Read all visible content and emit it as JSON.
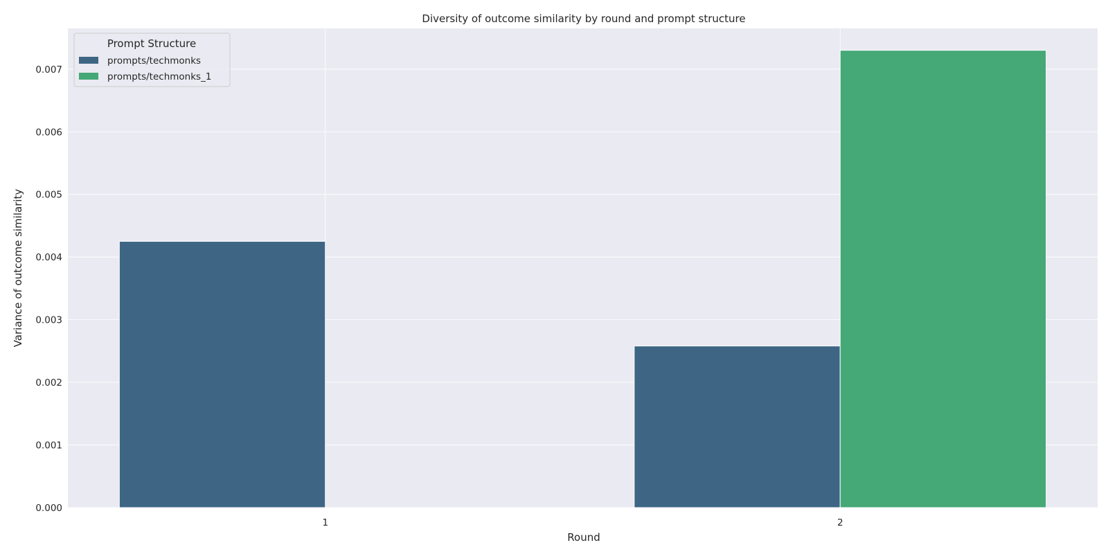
{
  "chart_data": {
    "type": "bar",
    "title": "Diversity of outcome similarity by round and prompt structure",
    "xlabel": "Round",
    "ylabel": "Variance of outcome similarity",
    "categories": [
      "1",
      "2"
    ],
    "series": [
      {
        "name": "prompts/techmonks",
        "color": "#3e6684",
        "values": [
          0.00425,
          0.00258
        ]
      },
      {
        "name": "prompts/techmonks_1",
        "color": "#45a877",
        "values": [
          null,
          0.0073
        ]
      }
    ],
    "ylim": [
      0,
      0.00765
    ],
    "yticks": [
      "0.000",
      "0.001",
      "0.002",
      "0.003",
      "0.004",
      "0.005",
      "0.006",
      "0.007"
    ],
    "legend": {
      "title": "Prompt Structure",
      "position": "top-left"
    },
    "grid": true,
    "background_color": "#eaeaf2"
  }
}
